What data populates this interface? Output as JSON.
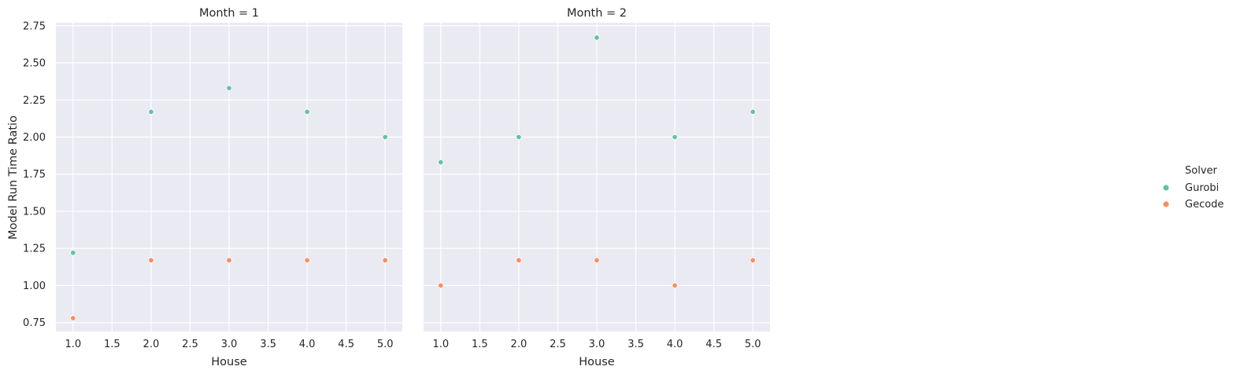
{
  "chart_data": {
    "type": "scatter",
    "ylabel": "Model Run Time Ratio",
    "ylim": [
      0.69,
      2.77
    ],
    "y_ticks": [
      "0.75",
      "1.00",
      "1.25",
      "1.50",
      "1.75",
      "2.00",
      "2.25",
      "2.50",
      "2.75"
    ],
    "y_tick_values": [
      0.75,
      1.0,
      1.25,
      1.5,
      1.75,
      2.0,
      2.25,
      2.5,
      2.75
    ],
    "grid": true,
    "legend": {
      "title": "Solver",
      "placement": "right",
      "entries": [
        {
          "name": "Gurobi",
          "color": "#66c2a5"
        },
        {
          "name": "Gecode",
          "color": "#fc8d62"
        }
      ]
    },
    "facets": [
      {
        "title": "Month = 1",
        "xlabel": "House",
        "xlim": [
          0.78,
          5.22
        ],
        "x_ticks": [
          "1.0",
          "1.5",
          "2.0",
          "2.5",
          "3.0",
          "3.5",
          "4.0",
          "4.5",
          "5.0"
        ],
        "x_tick_values": [
          1.0,
          1.5,
          2.0,
          2.5,
          3.0,
          3.5,
          4.0,
          4.5,
          5.0
        ],
        "series": [
          {
            "name": "Gurobi",
            "color": "#66c2a5",
            "x": [
              1,
              2,
              3,
              4,
              5
            ],
            "y": [
              1.22,
              2.17,
              2.33,
              2.17,
              2.0
            ]
          },
          {
            "name": "Gecode",
            "color": "#fc8d62",
            "x": [
              1,
              2,
              3,
              4,
              5
            ],
            "y": [
              0.78,
              1.17,
              1.17,
              1.17,
              1.17
            ]
          }
        ]
      },
      {
        "title": "Month = 2",
        "xlabel": "House",
        "xlim": [
          0.78,
          5.22
        ],
        "x_ticks": [
          "1.0",
          "1.5",
          "2.0",
          "2.5",
          "3.0",
          "3.5",
          "4.0",
          "4.5",
          "5.0"
        ],
        "x_tick_values": [
          1.0,
          1.5,
          2.0,
          2.5,
          3.0,
          3.5,
          4.0,
          4.5,
          5.0
        ],
        "series": [
          {
            "name": "Gurobi",
            "color": "#66c2a5",
            "x": [
              1,
              2,
              3,
              4,
              5
            ],
            "y": [
              1.83,
              2.0,
              2.67,
              2.0,
              2.17
            ]
          },
          {
            "name": "Gecode",
            "color": "#fc8d62",
            "x": [
              1,
              2,
              3,
              4,
              5
            ],
            "y": [
              1.0,
              1.17,
              1.17,
              1.0,
              1.17
            ]
          }
        ]
      }
    ]
  }
}
